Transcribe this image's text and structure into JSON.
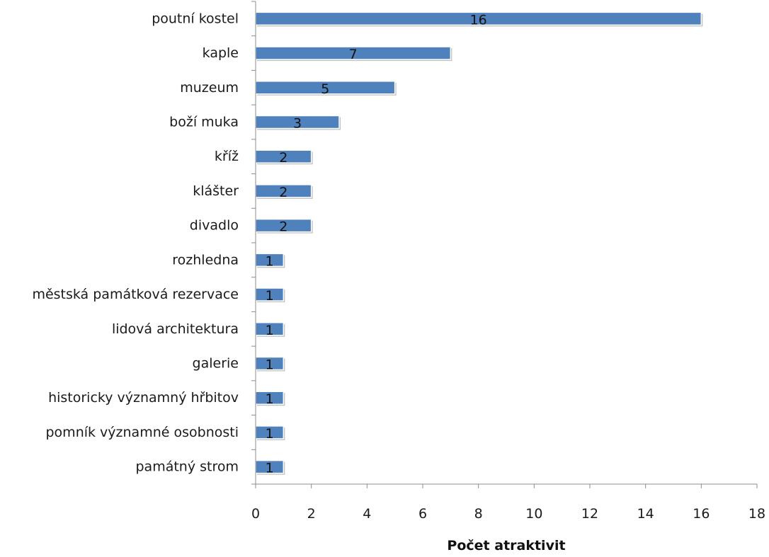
{
  "chart_data": {
    "type": "bar",
    "orientation": "horizontal",
    "categories": [
      "poutní kostel",
      "kaple",
      "muzeum",
      "boží muka",
      "kříž",
      "klášter",
      "divadlo",
      "rozhledna",
      "městská památková rezervace",
      "lidová architektura",
      "galerie",
      "historicky významný hřbitov",
      "pomník významné osobnosti",
      "památný strom"
    ],
    "values": [
      16,
      7,
      5,
      3,
      2,
      2,
      2,
      1,
      1,
      1,
      1,
      1,
      1,
      1
    ],
    "title": "",
    "xlabel": "Počet atraktivit",
    "ylabel": "",
    "xlim": [
      0,
      18
    ],
    "xticks": [
      0,
      2,
      4,
      6,
      8,
      10,
      12,
      14,
      16,
      18
    ],
    "grid": false,
    "legend": "none",
    "bar_color": "#4f81bd",
    "data_labels": true
  }
}
